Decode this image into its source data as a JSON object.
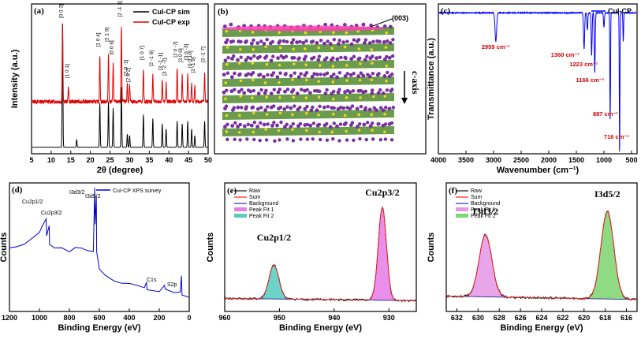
{
  "chart_data": [
    {
      "id": "a",
      "type": "line",
      "panel_label": "(a)",
      "xlabel": "2θ (degree)",
      "ylabel": "Intensity (a.u.)",
      "xlim": [
        5,
        50
      ],
      "xticks": [
        5,
        10,
        15,
        20,
        25,
        30,
        35,
        40,
        45,
        50
      ],
      "legend_position": "top-right",
      "series": [
        {
          "name": "CuI-CP sim",
          "color": "#000000",
          "baseline": 0.05,
          "peaks": [
            [
              12.9,
              0.95
            ],
            [
              16.5,
              0.06
            ],
            [
              22.4,
              0.34
            ],
            [
              24.6,
              0.35
            ],
            [
              25.8,
              0.3
            ],
            [
              27.9,
              0.46
            ],
            [
              29.4,
              0.1
            ],
            [
              30.0,
              0.09
            ],
            [
              33.5,
              0.25
            ],
            [
              35.9,
              0.22
            ],
            [
              38.3,
              0.18
            ],
            [
              39.3,
              0.14
            ],
            [
              42.1,
              0.2
            ],
            [
              43.4,
              0.18
            ],
            [
              44.8,
              0.2
            ],
            [
              45.8,
              0.14
            ],
            [
              46.6,
              0.09
            ],
            [
              49.1,
              0.2
            ]
          ]
        },
        {
          "name": "CuI-CP exp",
          "color": "#e00000",
          "baseline": 0.4,
          "peaks": [
            [
              12.9,
              0.6
            ],
            [
              14.4,
              0.12
            ],
            [
              22.4,
              0.35
            ],
            [
              24.6,
              0.38
            ],
            [
              25.8,
              0.3
            ],
            [
              27.9,
              0.58
            ],
            [
              29.4,
              0.14
            ],
            [
              30.0,
              0.12
            ],
            [
              33.5,
              0.25
            ],
            [
              35.9,
              0.2
            ],
            [
              38.3,
              0.17
            ],
            [
              39.3,
              0.14
            ],
            [
              42.1,
              0.26
            ],
            [
              43.4,
              0.2
            ],
            [
              44.8,
              0.22
            ],
            [
              45.8,
              0.15
            ],
            [
              46.6,
              0.12
            ],
            [
              49.1,
              0.22
            ]
          ]
        }
      ],
      "annotations": [
        {
          "x": 12.9,
          "y": 1.04,
          "text": "[0 0 3]"
        },
        {
          "x": 14.4,
          "y": 0.58,
          "text": "[1 0 1]"
        },
        {
          "x": 22.4,
          "y": 0.82,
          "text": "[1 0 4]"
        },
        {
          "x": 24.6,
          "y": 0.86,
          "text": "[2 1 0]"
        },
        {
          "x": 25.8,
          "y": 0.76,
          "text": "[0 0 6]"
        },
        {
          "x": 27.9,
          "y": 1.05,
          "text": "[2 -1 3]"
        },
        {
          "x": 29.4,
          "y": 0.6,
          "text": "[2 0 -1]"
        },
        {
          "x": 30.0,
          "y": 0.55,
          "text": "[2 0 2]"
        },
        {
          "x": 33.5,
          "y": 0.72,
          "text": "[1 0 7]"
        },
        {
          "x": 35.9,
          "y": 0.67,
          "text": "[2 -1 6]"
        },
        {
          "x": 38.3,
          "y": 0.64,
          "text": "[3 -2 -1]"
        },
        {
          "x": 39.3,
          "y": 0.6,
          "text": "[3 -2 -2]"
        },
        {
          "x": 42.1,
          "y": 0.74,
          "text": "[2 0 -7]"
        },
        {
          "x": 43.4,
          "y": 0.7,
          "text": "[3 0 0]"
        },
        {
          "x": 44.8,
          "y": 0.72,
          "text": "[3 0 -3]"
        },
        {
          "x": 45.8,
          "y": 0.66,
          "text": "[0 0 10]"
        },
        {
          "x": 46.6,
          "y": 0.62,
          "text": "[2 -1 9]"
        },
        {
          "x": 49.1,
          "y": 0.7,
          "text": "[3 -1 7]"
        }
      ]
    },
    {
      "id": "b",
      "type": "other",
      "panel_label": "(b)",
      "annotations": [
        "(003)",
        "c-axis"
      ]
    },
    {
      "id": "c",
      "type": "line",
      "panel_label": "(c)",
      "xlabel": "Wavenumber (cm⁻¹)",
      "ylabel": "Transmittance (a.u.)",
      "xlim": [
        4000,
        400
      ],
      "xticks": [
        4000,
        3500,
        3000,
        2500,
        2000,
        1500,
        1000,
        500
      ],
      "legend_position": "top-right",
      "series": [
        {
          "name": "CuI-CP",
          "color": "#0000ff",
          "baseline": 0.96,
          "dips": [
            [
              2959,
              0.2,
              14
            ],
            [
              1360,
              0.25,
              10
            ],
            [
              1300,
              0.12,
              8
            ],
            [
              1223,
              0.3,
              8
            ],
            [
              1166,
              0.42,
              8
            ],
            [
              1000,
              0.1,
              8
            ],
            [
              887,
              0.75,
              6
            ],
            [
              716,
              0.98,
              6
            ],
            [
              650,
              0.2,
              6
            ]
          ]
        }
      ],
      "annotations": [
        {
          "x": 2959,
          "text": "2959 cm⁻¹"
        },
        {
          "x": 1360,
          "text": "1360 cm⁻¹"
        },
        {
          "x": 1223,
          "text": "1223 cm⁻¹"
        },
        {
          "x": 1166,
          "text": "1166 cm⁻¹"
        },
        {
          "x": 887,
          "text": "887 cm⁻¹"
        },
        {
          "x": 716,
          "text": "716 cm⁻¹"
        }
      ]
    },
    {
      "id": "d",
      "type": "line",
      "panel_label": "(d)",
      "xlabel": "Binding Energy (eV)",
      "ylabel": "Counts",
      "xlim": [
        1200,
        0
      ],
      "xticks": [
        1200,
        1000,
        800,
        600,
        400,
        200,
        0
      ],
      "legend_position": "top",
      "series": [
        {
          "name": "CuI-CP XPS survey",
          "color": "#0000cc",
          "points": [
            [
              1200,
              0.5
            ],
            [
              1150,
              0.52
            ],
            [
              1100,
              0.54
            ],
            [
              1050,
              0.58
            ],
            [
              1000,
              0.63
            ],
            [
              980,
              0.7
            ],
            [
              955,
              0.75
            ],
            [
              952,
              0.62
            ],
            [
              935,
              0.7
            ],
            [
              932,
              0.55
            ],
            [
              900,
              0.52
            ],
            [
              850,
              0.5
            ],
            [
              800,
              0.48
            ],
            [
              760,
              0.52
            ],
            [
              720,
              0.5
            ],
            [
              680,
              0.48
            ],
            [
              640,
              0.47
            ],
            [
              631,
              1.0
            ],
            [
              628,
              0.7
            ],
            [
              620,
              0.93
            ],
            [
              618,
              0.5
            ],
            [
              600,
              0.35
            ],
            [
              560,
              0.3
            ],
            [
              500,
              0.26
            ],
            [
              450,
              0.24
            ],
            [
              400,
              0.22
            ],
            [
              350,
              0.2
            ],
            [
              300,
              0.19
            ],
            [
              285,
              0.24
            ],
            [
              282,
              0.19
            ],
            [
              200,
              0.17
            ],
            [
              165,
              0.21
            ],
            [
              160,
              0.17
            ],
            [
              100,
              0.16
            ],
            [
              60,
              0.15
            ],
            [
              52,
              0.28
            ],
            [
              48,
              0.14
            ],
            [
              20,
              0.13
            ],
            [
              0,
              0.12
            ]
          ]
        }
      ],
      "annotations": [
        {
          "text": "Cu2p1/2",
          "x": 952
        },
        {
          "text": "Cu2p3/2",
          "x": 932
        },
        {
          "text": "I3d3/2",
          "x": 631
        },
        {
          "text": "I3d5/2",
          "x": 620
        },
        {
          "text": "C1s",
          "x": 285
        },
        {
          "text": "S2p",
          "x": 163
        }
      ]
    },
    {
      "id": "e",
      "type": "line",
      "panel_label": "(e)",
      "xlabel": "Binding Energy (eV)",
      "ylabel": "Counts",
      "xlim": [
        960,
        925
      ],
      "xticks": [
        960,
        950,
        940,
        930
      ],
      "legend_position": "top-left",
      "legend": [
        "Raw",
        "Sum",
        "Background",
        "Peak Fit 1",
        "Peak Fit 2"
      ],
      "peaks": [
        {
          "name": "Peak Fit 1",
          "center": 931.2,
          "height": 0.82,
          "width": 0.75,
          "color": "#e060e0"
        },
        {
          "name": "Peak Fit 2",
          "center": 951.0,
          "height": 0.3,
          "width": 0.9,
          "color": "#30c0b0"
        }
      ],
      "annotations": [
        {
          "text": "Cu2p1/2",
          "x": 951.0
        },
        {
          "text": "Cu2p3/2",
          "x": 931.2
        }
      ]
    },
    {
      "id": "f",
      "type": "line",
      "panel_label": "(f)",
      "xlabel": "Binding Energy (eV)",
      "ylabel": "Counts",
      "xlim": [
        633,
        615
      ],
      "xticks": [
        632,
        630,
        628,
        626,
        624,
        622,
        620,
        618,
        616
      ],
      "legend_position": "top-left",
      "legend": [
        "Raw",
        "Sum",
        "Background",
        "Peak Fit 1",
        "Peak Fit 2"
      ],
      "peaks": [
        {
          "name": "Peak Fit 1",
          "center": 629.3,
          "height": 0.55,
          "width": 0.6,
          "color": "#e080e0"
        },
        {
          "name": "Peak Fit 2",
          "center": 617.8,
          "height": 0.78,
          "width": 0.6,
          "color": "#60cc50"
        }
      ],
      "annotations": [
        {
          "text": "I3d3/2",
          "x": 629.3
        },
        {
          "text": "I3d5/2",
          "x": 617.8
        }
      ]
    }
  ]
}
